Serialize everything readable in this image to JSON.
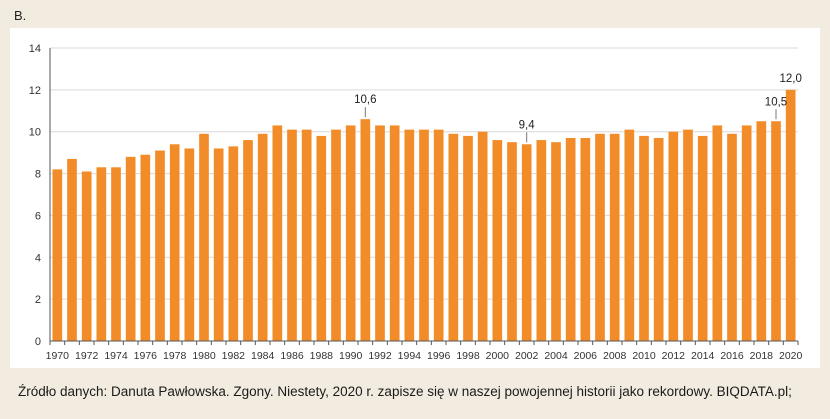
{
  "panel_label": "B.",
  "source": "Źródło danych: Danuta Pawłowska. Zgony. Niestety, 2020 r. zapisze się w naszej powojennej historii jako rekordowy. BIQDATA.pl;",
  "chart_data": {
    "type": "bar",
    "title": "",
    "xlabel": "",
    "ylabel": "",
    "ylim": [
      0,
      14
    ],
    "yticks": [
      0,
      2,
      4,
      6,
      8,
      10,
      12,
      14
    ],
    "grid": true,
    "bar_color": "#f28c28",
    "x_tick_labels": [
      "1970",
      "1972",
      "1974",
      "1976",
      "1978",
      "1980",
      "1982",
      "1984",
      "1986",
      "1988",
      "1990",
      "1992",
      "1994",
      "1996",
      "1998",
      "2000",
      "2002",
      "2004",
      "2006",
      "2008",
      "2010",
      "2012",
      "2014",
      "2016",
      "2018",
      "2020"
    ],
    "categories": [
      "1970",
      "1971",
      "1972",
      "1973",
      "1974",
      "1975",
      "1976",
      "1977",
      "1978",
      "1979",
      "1980",
      "1981",
      "1982",
      "1983",
      "1984",
      "1985",
      "1986",
      "1987",
      "1988",
      "1989",
      "1990",
      "1991",
      "1992",
      "1993",
      "1994",
      "1995",
      "1996",
      "1997",
      "1998",
      "1999",
      "2000",
      "2001",
      "2002",
      "2003",
      "2004",
      "2005",
      "2006",
      "2007",
      "2008",
      "2009",
      "2010",
      "2011",
      "2012",
      "2013",
      "2014",
      "2015",
      "2016",
      "2017",
      "2018",
      "2019",
      "2020"
    ],
    "values": [
      8.2,
      8.7,
      8.1,
      8.3,
      8.3,
      8.8,
      8.9,
      9.1,
      9.4,
      9.2,
      9.9,
      9.2,
      9.3,
      9.6,
      9.9,
      10.3,
      10.1,
      10.1,
      9.8,
      10.1,
      10.3,
      10.6,
      10.3,
      10.3,
      10.1,
      10.1,
      10.1,
      9.9,
      9.8,
      10.0,
      9.6,
      9.5,
      9.4,
      9.6,
      9.5,
      9.7,
      9.7,
      9.9,
      9.9,
      10.1,
      9.8,
      9.7,
      10.0,
      10.1,
      9.8,
      10.3,
      9.9,
      10.3,
      10.5,
      10.5,
      12.0
    ],
    "annotations": [
      {
        "category": "1991",
        "text": "10,6"
      },
      {
        "category": "2002",
        "text": "9,4"
      },
      {
        "category": "2019",
        "text": "10,5"
      },
      {
        "category": "2020",
        "text": "12,0"
      }
    ]
  }
}
